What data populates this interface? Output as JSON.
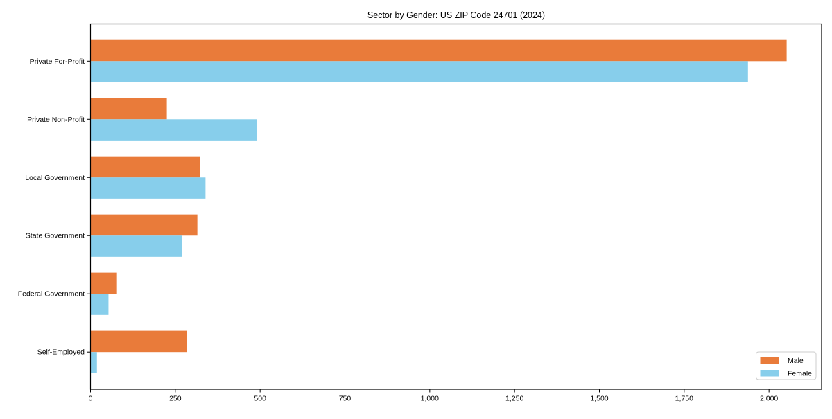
{
  "chart_data": {
    "type": "bar",
    "orientation": "horizontal",
    "title": "Sector by Gender: US ZIP Code 24701 (2024)",
    "categories": [
      "Private For-Profit",
      "Private Non-Profit",
      "Local Government",
      "State Government",
      "Federal Government",
      "Self-Employed"
    ],
    "series": [
      {
        "name": "Male",
        "color": "#e97b3a",
        "values": [
          2052,
          225,
          323,
          315,
          78,
          285
        ]
      },
      {
        "name": "Female",
        "color": "#87ceeb",
        "values": [
          1938,
          491,
          339,
          270,
          53,
          19
        ]
      }
    ],
    "xlabel": "",
    "ylabel": "",
    "xlim": [
      0,
      2155
    ],
    "xticks": [
      0,
      250,
      500,
      750,
      1000,
      1250,
      1500,
      1750,
      2000
    ],
    "xtick_labels": [
      "0",
      "250",
      "500",
      "750",
      "1,000",
      "1,250",
      "1,500",
      "1,750",
      "2,000"
    ],
    "grid": false,
    "legend": {
      "position": "lower-right",
      "entries": [
        {
          "label": "Male",
          "color": "#e97b3a"
        },
        {
          "label": "Female",
          "color": "#87ceeb"
        }
      ]
    },
    "colors": {
      "spine": "#000000",
      "legend_border": "#cccccc",
      "background": "#ffffff"
    }
  }
}
